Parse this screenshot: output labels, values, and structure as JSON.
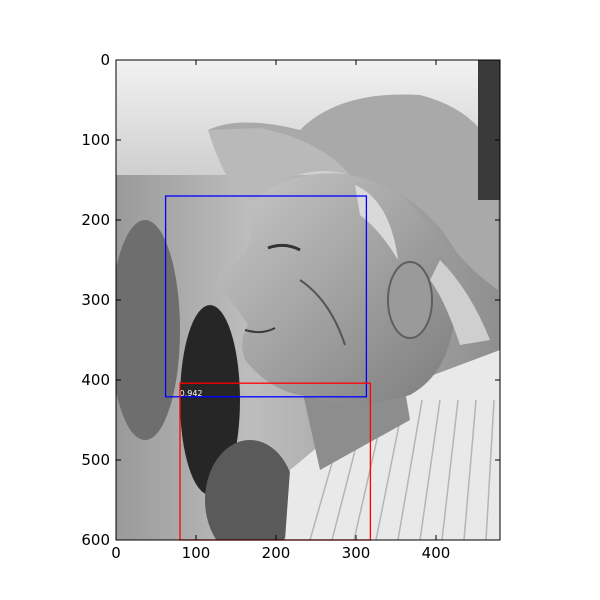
{
  "chart_data": {
    "type": "image",
    "title": "",
    "xlabel": "",
    "ylabel": "",
    "xlim": [
      0,
      480
    ],
    "ylim": [
      600,
      0
    ],
    "grid": false,
    "x_ticks": [
      0,
      100,
      200,
      300,
      400
    ],
    "y_ticks": [
      0,
      100,
      200,
      300,
      400,
      500,
      600
    ],
    "image": {
      "description": "grayscale photo, elderly man in profile wearing a cap",
      "tone": "grayscale"
    },
    "boxes": [
      {
        "name": "blue-box",
        "x0": 62,
        "y0": 170,
        "x1": 313,
        "y1": 421,
        "color": "#0000ff",
        "label": "0.942"
      },
      {
        "name": "red-box",
        "x0": 80,
        "y0": 404,
        "x1": 318,
        "y1": 600,
        "color": "#ff0000",
        "label": ""
      }
    ]
  }
}
